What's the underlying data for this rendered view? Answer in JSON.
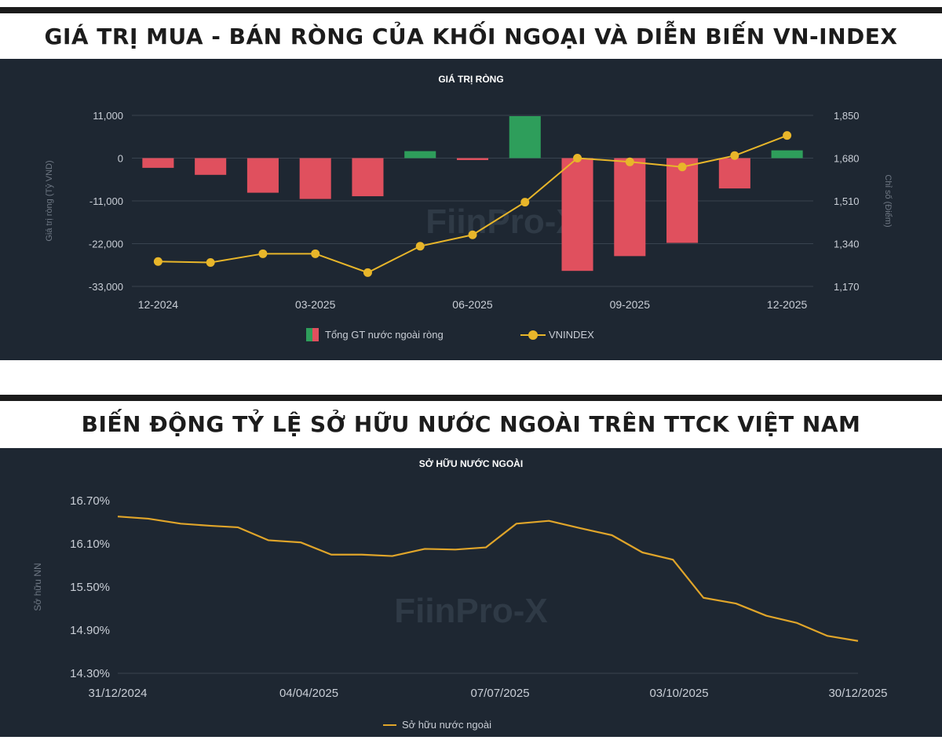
{
  "colors": {
    "panel_bg": "#1e2732",
    "positive_bar": "#2e9e5b",
    "negative_bar": "#e0505e",
    "line_gold": "#e8b62a",
    "ownership_line": "#e0a52a",
    "axis_text": "#c9ced6",
    "grid": "#39434f"
  },
  "sections": [
    {
      "heading": "GIÁ TRỊ MUA - BÁN RÒNG CỦA KHỐI NGOẠI VÀ DIỄN BIẾN VN-INDEX"
    },
    {
      "heading": "BIẾN ĐỘNG TỶ LỆ SỞ HỮU NƯỚC NGOÀI TRÊN TTCK VIỆT NAM"
    }
  ],
  "chart_data": [
    {
      "type": "bar",
      "title": "GIÁ TRỊ RÒNG",
      "ylabel": "Giá trị ròng (Tỷ VND)",
      "y2label": "Chỉ số (Điểm)",
      "ylim": [
        -33000,
        11000
      ],
      "y_ticks": [
        "11,000",
        "0",
        "-11,000",
        "-22,000",
        "-33,000"
      ],
      "y2lim": [
        1170,
        1850
      ],
      "y2_ticks": [
        "1,850",
        "1,680",
        "1,510",
        "1,340",
        "1,170"
      ],
      "categories": [
        "12-2024",
        "01-2025",
        "02-2025",
        "03-2025",
        "04-2025",
        "05-2025",
        "06-2025",
        "07-2025",
        "08-2025",
        "09-2025",
        "10-2025",
        "11-2025",
        "12-2025"
      ],
      "x_tick_labels": [
        "12-2024",
        "",
        "",
        "03-2025",
        "",
        "",
        "06-2025",
        "",
        "",
        "09-2025",
        "",
        "",
        "12-2025"
      ],
      "series": [
        {
          "name": "Tổng GT nước ngoài ròng",
          "kind": "bar",
          "values": [
            -2500,
            -4300,
            -8900,
            -10500,
            -9800,
            1800,
            -500,
            10800,
            -29000,
            -25200,
            -21800,
            -7800,
            2000
          ]
        },
        {
          "name": "VNINDEX",
          "kind": "line",
          "values": [
            1269,
            1265,
            1300,
            1300,
            1225,
            1330,
            1375,
            1505,
            1680,
            1665,
            1645,
            1690,
            1770
          ]
        }
      ],
      "legend_position": "bottom",
      "watermark": "FiinPro-X"
    },
    {
      "type": "line",
      "title": "SỞ HỮU NƯỚC NGOÀI",
      "ylabel": "Sở hữu NN",
      "ylim": [
        14.3,
        16.7
      ],
      "y_ticks": [
        "16.70%",
        "16.10%",
        "15.50%",
        "14.90%",
        "14.30%"
      ],
      "x_ticks": [
        "31/12/2024",
        "04/04/2025",
        "07/07/2025",
        "03/10/2025",
        "30/12/2025"
      ],
      "series": [
        {
          "name": "Sở hữu nước ngoài",
          "x": [
            "31/12/2024",
            "15/01/2025",
            "31/01/2025",
            "15/02/2025",
            "28/02/2025",
            "15/03/2025",
            "31/03/2025",
            "15/04/2025",
            "30/04/2025",
            "15/05/2025",
            "31/05/2025",
            "15/06/2025",
            "30/06/2025",
            "15/07/2025",
            "31/07/2025",
            "15/08/2025",
            "31/08/2025",
            "15/09/2025",
            "30/09/2025",
            "15/10/2025",
            "31/10/2025",
            "15/11/2025",
            "30/11/2025",
            "15/12/2025",
            "30/12/2025"
          ],
          "values": [
            16.48,
            16.45,
            16.38,
            16.35,
            16.33,
            16.15,
            16.12,
            15.95,
            15.95,
            15.93,
            16.03,
            16.02,
            16.05,
            16.38,
            16.42,
            16.32,
            16.22,
            15.98,
            15.88,
            15.35,
            15.27,
            15.1,
            15.0,
            14.82,
            14.75
          ]
        }
      ],
      "legend_position": "bottom",
      "watermark": "FiinPro-X"
    }
  ]
}
